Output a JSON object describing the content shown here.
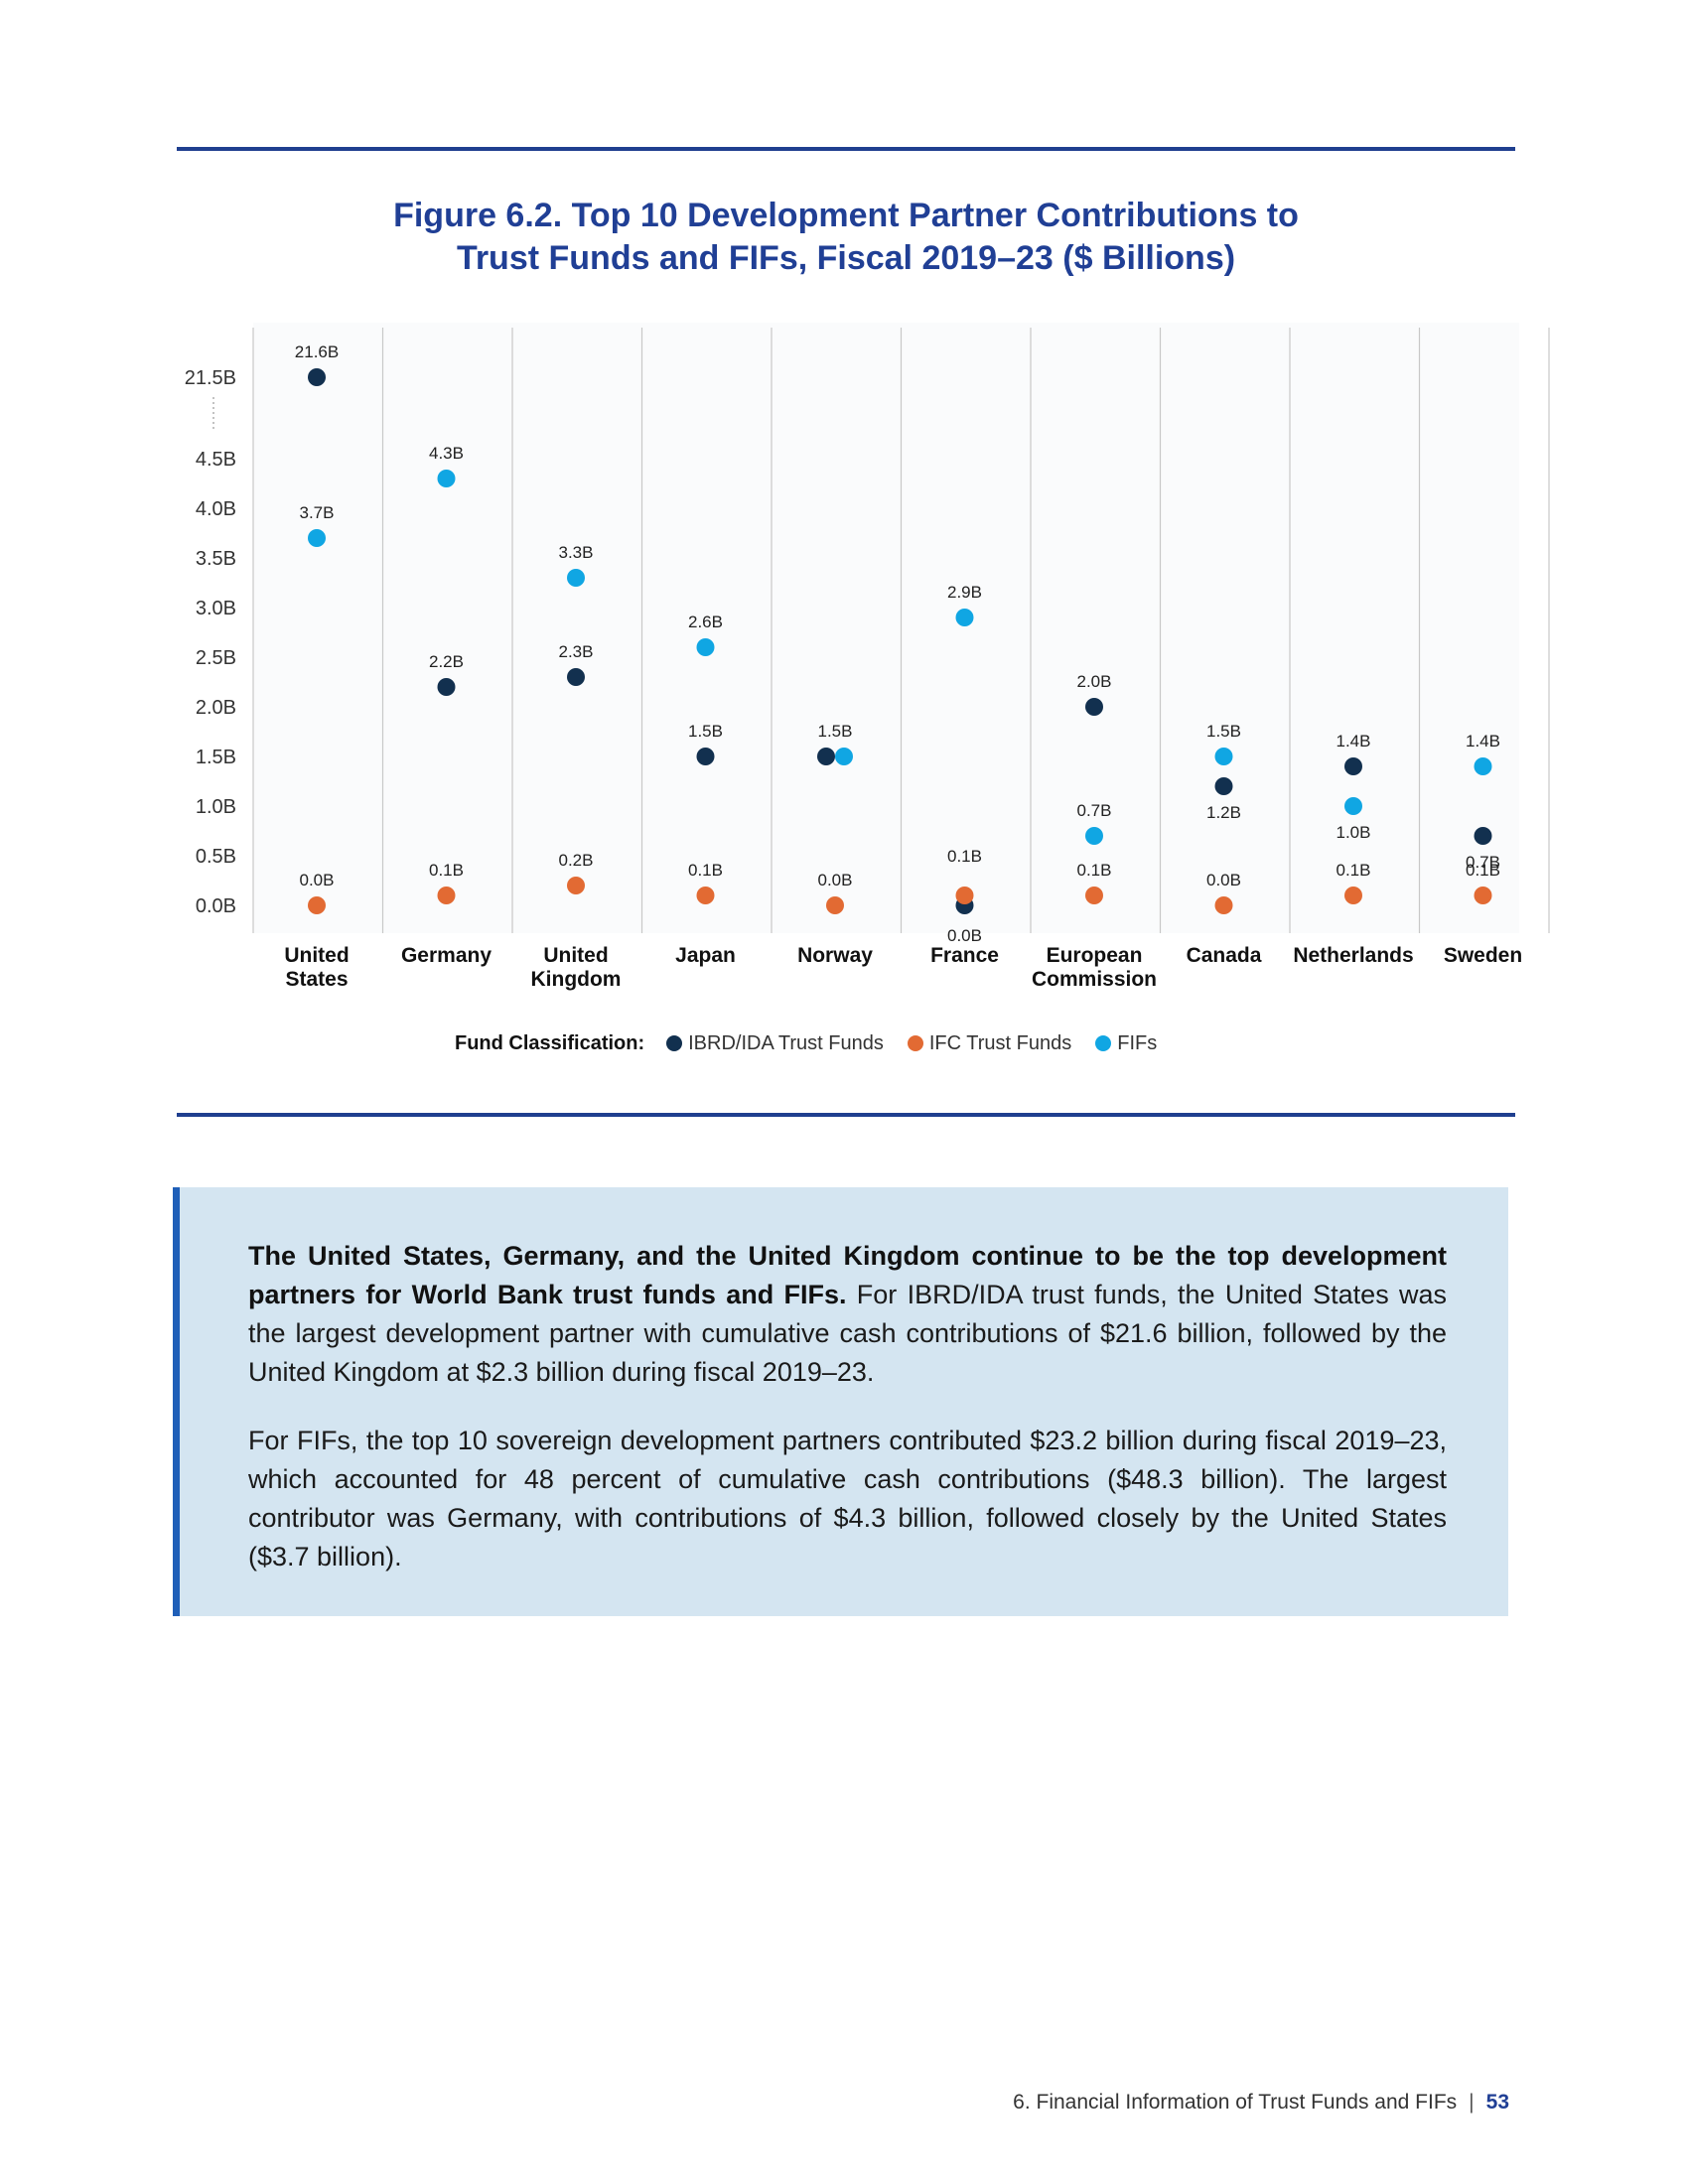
{
  "figure": {
    "title_line1": "Figure 6.2. Top 10 Development Partner Contributions to",
    "title_line2": "Trust Funds and FIFs, Fiscal 2019–23 ($ Billions)"
  },
  "chart_data": {
    "type": "scatter",
    "title": "Figure 6.2. Top 10 Development Partner Contributions to Trust Funds and FIFs, Fiscal 2019–23 ($ Billions)",
    "categories": [
      [
        "United",
        "States"
      ],
      [
        "Germany"
      ],
      [
        "United",
        "Kingdom"
      ],
      [
        "Japan"
      ],
      [
        "Norway"
      ],
      [
        "France"
      ],
      [
        "European",
        "Commission"
      ],
      [
        "Canada"
      ],
      [
        "Netherlands"
      ],
      [
        "Sweden"
      ]
    ],
    "y_ticks": [
      "0.0B",
      "0.5B",
      "1.0B",
      "1.5B",
      "2.0B",
      "2.5B",
      "3.0B",
      "3.5B",
      "4.0B",
      "4.5B",
      "21.5B"
    ],
    "y_tick_values": [
      0,
      0.5,
      1.0,
      1.5,
      2.0,
      2.5,
      3.0,
      3.5,
      4.0,
      4.5,
      21.5
    ],
    "axis_break": "between 4.5B and 21.5B",
    "legend_title": "Fund Classification:",
    "series": [
      {
        "name": "IBRD/IDA Trust Funds",
        "color": "#12304f",
        "values": [
          21.6,
          2.2,
          2.3,
          1.5,
          1.5,
          0.0,
          2.0,
          1.2,
          1.4,
          0.7
        ],
        "labels": [
          "21.6B",
          "2.2B",
          "2.3B",
          "1.5B",
          "",
          "0.0B",
          "2.0B",
          "1.2B",
          "1.4B",
          "0.7B"
        ]
      },
      {
        "name": "IFC Trust Funds",
        "color": "#e26a33",
        "values": [
          0.0,
          0.1,
          0.2,
          0.1,
          0.0,
          0.1,
          0.1,
          0.0,
          0.1,
          0.1
        ],
        "labels": [
          "0.0B",
          "0.1B",
          "0.2B",
          "0.1B",
          "0.0B",
          "0.1B",
          "0.1B",
          "0.0B",
          "0.1B",
          "0.1B"
        ]
      },
      {
        "name": "FIFs",
        "color": "#10a6e3",
        "values": [
          3.7,
          4.3,
          3.3,
          2.6,
          1.5,
          2.9,
          0.7,
          1.5,
          1.0,
          1.4
        ],
        "labels": [
          "3.7B",
          "4.3B",
          "3.3B",
          "2.6B",
          "1.5B",
          "2.9B",
          "0.7B",
          "1.5B",
          "1.0B",
          "1.4B"
        ]
      }
    ]
  },
  "callout": {
    "p1_bold": "The United States, Germany, and the United Kingdom continue to be the top development partners for World Bank trust funds and FIFs.",
    "p1_rest": " For IBRD/IDA trust funds, the United States was the largest development partner with cumulative cash contributions of $21.6 billion, followed by the United Kingdom at $2.3 billion during fiscal 2019–23.",
    "p2": "For FIFs, the top 10 sovereign development partners contributed $23.2 billion during fiscal 2019–23, which accounted for 48 percent of cumulative cash contributions ($48.3 billion). The largest contributor was Germany, with contributions of $4.3 billion, followed closely by the United States ($3.7 billion)."
  },
  "footer": {
    "section": "6. Financial Information of Trust Funds and FIFs",
    "separator": "|",
    "page": "53"
  }
}
